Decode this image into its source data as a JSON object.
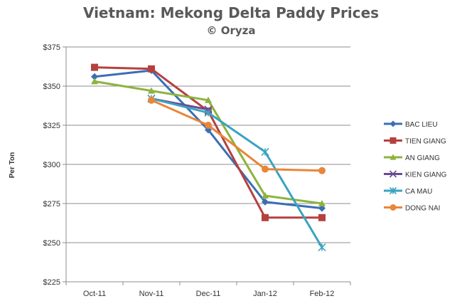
{
  "chart_data": {
    "type": "line",
    "title": "Vietnam: Mekong Delta Paddy Prices",
    "subtitle": "© Oryza",
    "ylabel": "Per Ton",
    "xlabel": "",
    "categories": [
      "Oct-11",
      "Nov-11",
      "Dec-11",
      "Jan-12",
      "Feb-12"
    ],
    "ylim": [
      225,
      375
    ],
    "yticks": [
      225,
      250,
      275,
      300,
      325,
      350,
      375
    ],
    "ytick_labels": [
      "$225",
      "$250",
      "$275",
      "$300",
      "$325",
      "$350",
      "$375"
    ],
    "grid": "horizontal",
    "legend_position": "right",
    "series": [
      {
        "name": "BAC LIEU",
        "color": "#3A6FB5",
        "marker": "diamond",
        "values": [
          356,
          360,
          322,
          276,
          272
        ]
      },
      {
        "name": "TIEN GIANG",
        "color": "#B5413E",
        "marker": "square",
        "values": [
          362,
          361,
          334,
          266,
          266
        ]
      },
      {
        "name": "AN GIANG",
        "color": "#8DB33E",
        "marker": "triangle",
        "values": [
          353,
          347,
          341,
          280,
          275
        ]
      },
      {
        "name": "KIEN GIANG",
        "color": "#6B4A94",
        "marker": "x",
        "values": [
          null,
          342,
          335,
          null,
          null
        ]
      },
      {
        "name": "CA MAU",
        "color": "#3AA3C2",
        "marker": "star",
        "values": [
          null,
          342,
          333,
          308,
          247
        ]
      },
      {
        "name": "DONG NAI",
        "color": "#E8863A",
        "marker": "circle",
        "values": [
          null,
          341,
          325,
          297,
          296
        ]
      }
    ]
  }
}
